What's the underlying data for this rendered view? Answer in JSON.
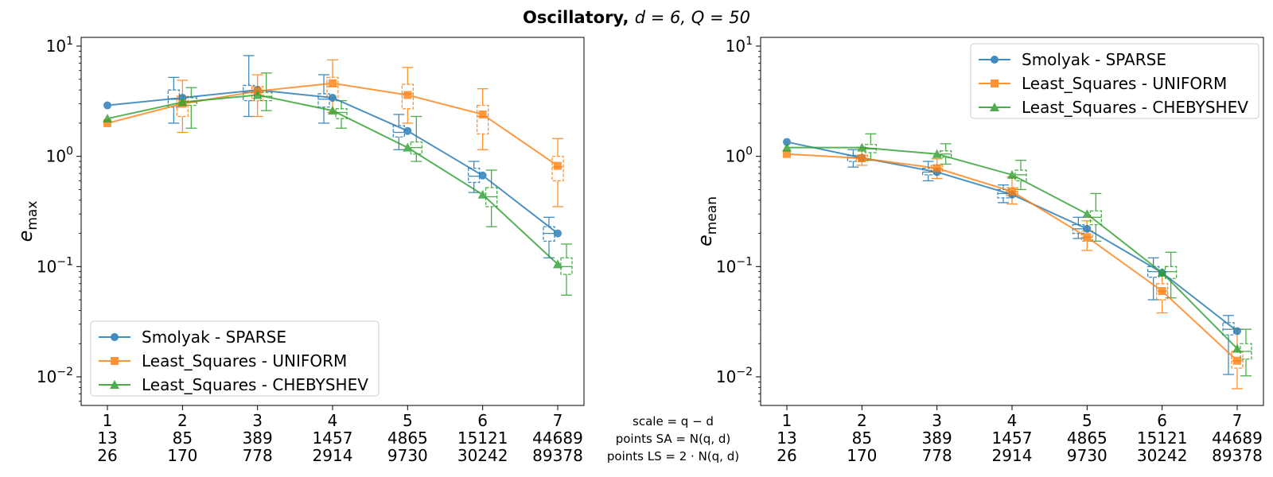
{
  "figure": {
    "title_bold": "Oscillatory, ",
    "title_math": "d = 6, Q = 50"
  },
  "bottom_labels": {
    "scale": "scale = q − d",
    "points_sa": "points SA = N(q, d)",
    "points_ls": "points LS = 2 · N(q, d)"
  },
  "colors": {
    "smolyak": "#1f77b4",
    "uniform": "#ff7f0e",
    "chebyshev": "#2ca02c"
  },
  "chart_data": [
    {
      "type": "line",
      "yscale": "log",
      "ylim": [
        0.0055,
        12
      ],
      "ylabel": "e_max",
      "ylabel_main": "e",
      "ylabel_sub": "max",
      "yticks": [
        {
          "value": 0.01,
          "base": "10",
          "exp": "−2"
        },
        {
          "value": 0.1,
          "base": "10",
          "exp": "−1"
        },
        {
          "value": 1,
          "base": "10",
          "exp": "0"
        },
        {
          "value": 10,
          "base": "10",
          "exp": "1"
        }
      ],
      "x": [
        1,
        2,
        3,
        4,
        5,
        6,
        7
      ],
      "xtick_rows": [
        [
          "1",
          "2",
          "3",
          "4",
          "5",
          "6",
          "7"
        ],
        [
          "13",
          "85",
          "389",
          "1457",
          "4865",
          "15121",
          "44689"
        ],
        [
          "26",
          "170",
          "778",
          "2914",
          "9730",
          "30242",
          "89378"
        ]
      ],
      "legend_position": "lower-left",
      "series": [
        {
          "name": "Smolyak - SPARSE",
          "marker": "circle",
          "values": [
            2.9,
            3.4,
            4.0,
            3.4,
            1.7,
            0.67,
            0.2
          ],
          "boxes": [
            null,
            {
              "low": 2.0,
              "q1": 2.8,
              "med": 3.3,
              "q3": 4.0,
              "high": 5.2
            },
            {
              "low": 2.3,
              "q1": 3.2,
              "med": 3.8,
              "q3": 4.4,
              "high": 8.2
            },
            {
              "low": 2.0,
              "q1": 2.8,
              "med": 3.3,
              "q3": 3.7,
              "high": 5.5
            },
            {
              "low": 1.15,
              "q1": 1.5,
              "med": 1.65,
              "q3": 1.9,
              "high": 2.4
            },
            {
              "low": 0.47,
              "q1": 0.58,
              "med": 0.66,
              "q3": 0.78,
              "high": 0.9
            },
            {
              "low": 0.12,
              "q1": 0.17,
              "med": 0.2,
              "q3": 0.23,
              "high": 0.28
            }
          ]
        },
        {
          "name": "Least_Squares - UNIFORM",
          "marker": "square",
          "values": [
            2.0,
            3.0,
            3.9,
            4.6,
            3.6,
            2.4,
            0.82
          ],
          "boxes": [
            null,
            {
              "low": 1.65,
              "q1": 2.3,
              "med": 2.9,
              "q3": 3.5,
              "high": 4.9
            },
            {
              "low": 2.3,
              "q1": 3.2,
              "med": 3.9,
              "q3": 4.3,
              "high": 5.5
            },
            {
              "low": 2.5,
              "q1": 3.4,
              "med": 4.3,
              "q3": 5.2,
              "high": 7.5
            },
            {
              "low": 2.0,
              "q1": 2.7,
              "med": 3.7,
              "q3": 4.5,
              "high": 6.4
            },
            {
              "low": 1.15,
              "q1": 1.6,
              "med": 2.3,
              "q3": 2.9,
              "high": 4.1
            },
            {
              "low": 0.35,
              "q1": 0.6,
              "med": 0.8,
              "q3": 1.0,
              "high": 1.45
            }
          ]
        },
        {
          "name": "Least_Squares - CHEBYSHEV",
          "marker": "triangle",
          "values": [
            2.2,
            3.1,
            3.6,
            2.6,
            1.2,
            0.45,
            0.105
          ],
          "boxes": [
            null,
            {
              "low": 1.8,
              "q1": 2.9,
              "med": 3.1,
              "q3": 3.4,
              "high": 4.2
            },
            {
              "low": 2.6,
              "q1": 3.2,
              "med": 3.5,
              "q3": 3.8,
              "high": 5.7
            },
            {
              "low": 1.8,
              "q1": 2.2,
              "med": 2.5,
              "q3": 2.7,
              "high": 3.2
            },
            {
              "low": 0.9,
              "q1": 1.05,
              "med": 1.2,
              "q3": 1.35,
              "high": 2.3
            },
            {
              "low": 0.23,
              "q1": 0.35,
              "med": 0.43,
              "q3": 0.52,
              "high": 0.75
            },
            {
              "low": 0.055,
              "q1": 0.085,
              "med": 0.1,
              "q3": 0.12,
              "high": 0.16
            }
          ]
        }
      ]
    },
    {
      "type": "line",
      "yscale": "log",
      "ylim": [
        0.0055,
        12
      ],
      "ylabel": "e_mean",
      "ylabel_main": "e",
      "ylabel_sub": "mean",
      "yticks": [
        {
          "value": 0.01,
          "base": "10",
          "exp": "−2"
        },
        {
          "value": 0.1,
          "base": "10",
          "exp": "−1"
        },
        {
          "value": 1,
          "base": "10",
          "exp": "0"
        },
        {
          "value": 10,
          "base": "10",
          "exp": "1"
        }
      ],
      "x": [
        1,
        2,
        3,
        4,
        5,
        6,
        7
      ],
      "xtick_rows": [
        [
          "1",
          "2",
          "3",
          "4",
          "5",
          "6",
          "7"
        ],
        [
          "13",
          "85",
          "389",
          "1457",
          "4865",
          "15121",
          "44689"
        ],
        [
          "26",
          "170",
          "778",
          "2914",
          "9730",
          "30242",
          "89378"
        ]
      ],
      "legend_position": "upper-right",
      "series": [
        {
          "name": "Smolyak - SPARSE",
          "marker": "circle",
          "values": [
            1.35,
            0.97,
            0.72,
            0.45,
            0.22,
            0.088,
            0.026
          ],
          "boxes": [
            null,
            {
              "low": 0.8,
              "q1": 0.9,
              "med": 0.97,
              "q3": 1.02,
              "high": 1.15
            },
            {
              "low": 0.6,
              "q1": 0.68,
              "med": 0.72,
              "q3": 0.78,
              "high": 0.9
            },
            {
              "low": 0.38,
              "q1": 0.42,
              "med": 0.46,
              "q3": 0.5,
              "high": 0.55
            },
            {
              "low": 0.18,
              "q1": 0.2,
              "med": 0.22,
              "q3": 0.24,
              "high": 0.28
            },
            {
              "low": 0.05,
              "q1": 0.08,
              "med": 0.09,
              "q3": 0.1,
              "high": 0.12
            },
            {
              "low": 0.0105,
              "q1": 0.024,
              "med": 0.027,
              "q3": 0.031,
              "high": 0.036
            }
          ]
        },
        {
          "name": "Least_Squares - UNIFORM",
          "marker": "square",
          "values": [
            1.05,
            0.96,
            0.78,
            0.48,
            0.185,
            0.06,
            0.014
          ],
          "boxes": [
            null,
            {
              "low": 0.83,
              "q1": 0.9,
              "med": 0.95,
              "q3": 1.02,
              "high": 1.2
            },
            {
              "low": 0.63,
              "q1": 0.72,
              "med": 0.78,
              "q3": 0.83,
              "high": 0.95
            },
            {
              "low": 0.37,
              "q1": 0.44,
              "med": 0.48,
              "q3": 0.52,
              "high": 0.65
            },
            {
              "low": 0.14,
              "q1": 0.17,
              "med": 0.185,
              "q3": 0.21,
              "high": 0.26
            },
            {
              "low": 0.038,
              "q1": 0.05,
              "med": 0.06,
              "q3": 0.07,
              "high": 0.09
            },
            {
              "low": 0.0078,
              "q1": 0.012,
              "med": 0.014,
              "q3": 0.017,
              "high": 0.027
            }
          ]
        },
        {
          "name": "Least_Squares - CHEBYSHEV",
          "marker": "triangle",
          "values": [
            1.2,
            1.2,
            1.05,
            0.68,
            0.3,
            0.088,
            0.018
          ],
          "boxes": [
            null,
            {
              "low": 0.92,
              "q1": 1.08,
              "med": 1.17,
              "q3": 1.28,
              "high": 1.6
            },
            {
              "low": 0.85,
              "q1": 0.98,
              "med": 1.05,
              "q3": 1.12,
              "high": 1.3
            },
            {
              "low": 0.5,
              "q1": 0.6,
              "med": 0.68,
              "q3": 0.75,
              "high": 0.92
            },
            {
              "low": 0.17,
              "q1": 0.24,
              "med": 0.28,
              "q3": 0.32,
              "high": 0.46
            },
            {
              "low": 0.052,
              "q1": 0.078,
              "med": 0.09,
              "q3": 0.1,
              "high": 0.135
            },
            {
              "low": 0.0102,
              "q1": 0.0145,
              "med": 0.017,
              "q3": 0.02,
              "high": 0.027
            }
          ]
        }
      ]
    }
  ]
}
